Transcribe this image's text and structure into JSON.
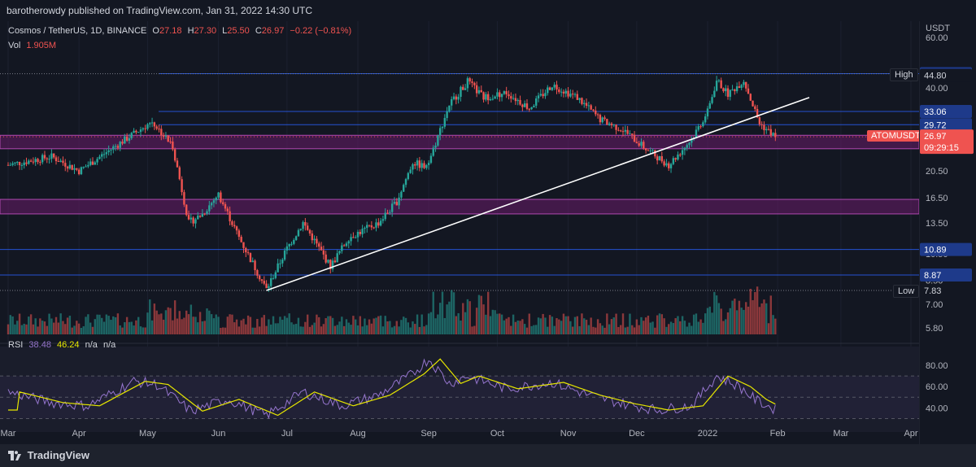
{
  "header": {
    "publisher_text": "barotherowdy published on TradingView.com, Jan 31, 2022 14:30 UTC"
  },
  "legend": {
    "symbol": "Cosmos / TetherUS, 1D, BINANCE",
    "o_label": "O",
    "o_value": "27.18",
    "h_label": "H",
    "h_value": "27.30",
    "l_label": "L",
    "l_value": "25.50",
    "c_label": "C",
    "c_value": "26.97",
    "change": "−0.22 (−0.81%)",
    "vol_label": "Vol",
    "vol_value": "1.905M"
  },
  "rsi_legend": {
    "label": "RSI",
    "value1": "38.48",
    "value2": "46.24",
    "na1": "n/a",
    "na2": "n/a"
  },
  "footer": {
    "brand": "TradingView"
  },
  "colors": {
    "up": "#26a69a",
    "down": "#ef5350",
    "zone": "#6a1b6a",
    "rsi_line": "#9575cd",
    "rsi_ma": "#e6e600",
    "trend": "#ffffff",
    "level": "#2962ff"
  },
  "chart_data": {
    "type": "candlestick",
    "symbol": "Cosmos / TetherUS, 1D, BINANCE",
    "currency": "USDT",
    "price_axis": {
      "scale": "log",
      "ticks": [
        "5.80",
        "7.00",
        "8.50",
        "10.50",
        "13.50",
        "16.50",
        "20.50",
        "25.00",
        "30.00",
        "40.00",
        "60.00"
      ],
      "range": [
        5.5,
        60
      ]
    },
    "time_axis": [
      "Mar",
      "Apr",
      "May",
      "Jun",
      "Jul",
      "Aug",
      "Sep",
      "Oct",
      "Nov",
      "Dec",
      "2022",
      "Feb",
      "Mar",
      "Apr"
    ],
    "path_keypoints": [
      {
        "date": "2021-03-01",
        "price": 21.5
      },
      {
        "date": "2021-03-20",
        "price": 23.0
      },
      {
        "date": "2021-04-01",
        "price": 20.5
      },
      {
        "date": "2021-04-20",
        "price": 26.0
      },
      {
        "date": "2021-05-03",
        "price": 30.5
      },
      {
        "date": "2021-05-12",
        "price": 25.0
      },
      {
        "date": "2021-05-19",
        "price": 13.5
      },
      {
        "date": "2021-05-25",
        "price": 14.5
      },
      {
        "date": "2021-06-01",
        "price": 17.0
      },
      {
        "date": "2021-06-10",
        "price": 12.0
      },
      {
        "date": "2021-06-22",
        "price": 7.9
      },
      {
        "date": "2021-07-01",
        "price": 11.0
      },
      {
        "date": "2021-07-08",
        "price": 13.5
      },
      {
        "date": "2021-07-20",
        "price": 9.5
      },
      {
        "date": "2021-07-28",
        "price": 12.0
      },
      {
        "date": "2021-08-10",
        "price": 13.5
      },
      {
        "date": "2021-08-18",
        "price": 16.0
      },
      {
        "date": "2021-08-25",
        "price": 22.0
      },
      {
        "date": "2021-08-31",
        "price": 21.0
      },
      {
        "date": "2021-09-10",
        "price": 35.0
      },
      {
        "date": "2021-09-18",
        "price": 42.0
      },
      {
        "date": "2021-09-25",
        "price": 37.0
      },
      {
        "date": "2021-10-05",
        "price": 38.5
      },
      {
        "date": "2021-10-15",
        "price": 34.0
      },
      {
        "date": "2021-10-25",
        "price": 41.0
      },
      {
        "date": "2021-11-05",
        "price": 37.0
      },
      {
        "date": "2021-11-15",
        "price": 31.0
      },
      {
        "date": "2021-11-25",
        "price": 28.5
      },
      {
        "date": "2021-12-05",
        "price": 24.5
      },
      {
        "date": "2021-12-15",
        "price": 21.5
      },
      {
        "date": "2021-12-25",
        "price": 26.5
      },
      {
        "date": "2022-01-01",
        "price": 33.0
      },
      {
        "date": "2022-01-05",
        "price": 42.5
      },
      {
        "date": "2022-01-10",
        "price": 38.0
      },
      {
        "date": "2022-01-17",
        "price": 42.5
      },
      {
        "date": "2022-01-24",
        "price": 30.0
      },
      {
        "date": "2022-01-31",
        "price": 26.97
      }
    ],
    "horizontal_levels": [
      {
        "price": 44.82,
        "label": "44.82"
      },
      {
        "price": 33.06,
        "label": "33.06"
      },
      {
        "price": 29.72,
        "label": "29.72"
      },
      {
        "price": 10.89,
        "label": "10.89"
      },
      {
        "price": 8.87,
        "label": "8.87"
      }
    ],
    "zones": [
      {
        "from": 24.5,
        "to": 27.3
      },
      {
        "from": 14.5,
        "to": 16.3
      }
    ],
    "trendline": [
      {
        "date": "2021-06-22",
        "price": 7.83
      },
      {
        "date": "2022-02-15",
        "price": 37.0
      }
    ],
    "price_labels": {
      "high": {
        "text": "High",
        "value": "44.80",
        "price": 44.8
      },
      "low": {
        "text": "Low",
        "value": "7.83",
        "price": 7.83
      },
      "current": {
        "symbol": "ATOMUSDT",
        "value": "26.97",
        "countdown": "09:29:15",
        "price": 26.97
      }
    },
    "rsi": {
      "ticks": [
        "80.00",
        "60.00",
        "40.00"
      ],
      "range": [
        25,
        90
      ],
      "bands": [
        30,
        70
      ],
      "keypoints": [
        {
          "date": "2021-03-01",
          "value": 55
        },
        {
          "date": "2021-03-20",
          "value": 45
        },
        {
          "date": "2021-04-05",
          "value": 42
        },
        {
          "date": "2021-04-25",
          "value": 65
        },
        {
          "date": "2021-05-05",
          "value": 62
        },
        {
          "date": "2021-05-20",
          "value": 37
        },
        {
          "date": "2021-06-05",
          "value": 48
        },
        {
          "date": "2021-06-22",
          "value": 33
        },
        {
          "date": "2021-07-08",
          "value": 55
        },
        {
          "date": "2021-07-25",
          "value": 42
        },
        {
          "date": "2021-08-10",
          "value": 52
        },
        {
          "date": "2021-08-25",
          "value": 72
        },
        {
          "date": "2021-09-01",
          "value": 86
        },
        {
          "date": "2021-09-10",
          "value": 63
        },
        {
          "date": "2021-09-18",
          "value": 70
        },
        {
          "date": "2021-10-05",
          "value": 58
        },
        {
          "date": "2021-10-25",
          "value": 64
        },
        {
          "date": "2021-11-10",
          "value": 52
        },
        {
          "date": "2021-11-25",
          "value": 44
        },
        {
          "date": "2021-12-10",
          "value": 38
        },
        {
          "date": "2021-12-25",
          "value": 42
        },
        {
          "date": "2022-01-05",
          "value": 70
        },
        {
          "date": "2022-01-15",
          "value": 60
        },
        {
          "date": "2022-01-22",
          "value": 48
        },
        {
          "date": "2022-01-31",
          "value": 38
        }
      ]
    }
  }
}
